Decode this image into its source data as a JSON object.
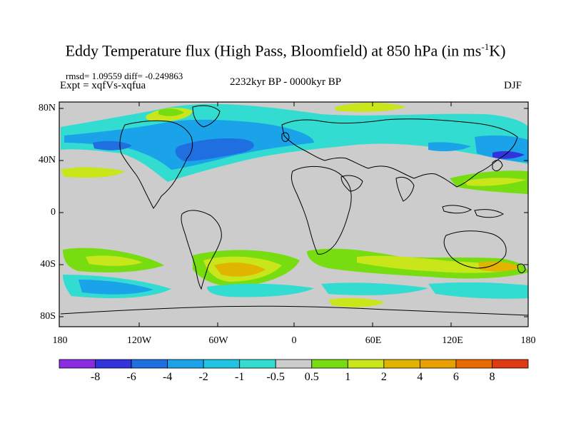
{
  "map": {
    "title_main": "Eddy Temperature flux (High Pass, Bloomfield) at 850 hPa (in ms",
    "title_sup": "-1",
    "title_end": "K)",
    "stats": "rmsd= 1.09559 diff= -0.249863",
    "experiment": "Expt = xqfVs-xqfua",
    "period": "2232kyr BP - 0000kyr BP",
    "season": "DJF",
    "lat_labels": [
      "80N",
      "40N",
      "0",
      "40S",
      "80S"
    ],
    "lon_labels": [
      "180",
      "120W",
      "60W",
      "0",
      "60E",
      "120E",
      "180"
    ]
  },
  "colorbar": {
    "labels": [
      "-8",
      "-6",
      "-4",
      "-2",
      "-1",
      "-0.5",
      "0.5",
      "1",
      "2",
      "4",
      "6",
      "8"
    ],
    "colors": [
      "#8a2be2",
      "#3333dd",
      "#1f6fe0",
      "#1aa3e8",
      "#22c4e3",
      "#33dcd0",
      "#cccccc",
      "#77dd11",
      "#c8e61a",
      "#e0b400",
      "#e8a000",
      "#e86a00",
      "#e03a10"
    ]
  },
  "palette": {
    "land_sea_background": "#cccccc",
    "coast": "#000000"
  }
}
